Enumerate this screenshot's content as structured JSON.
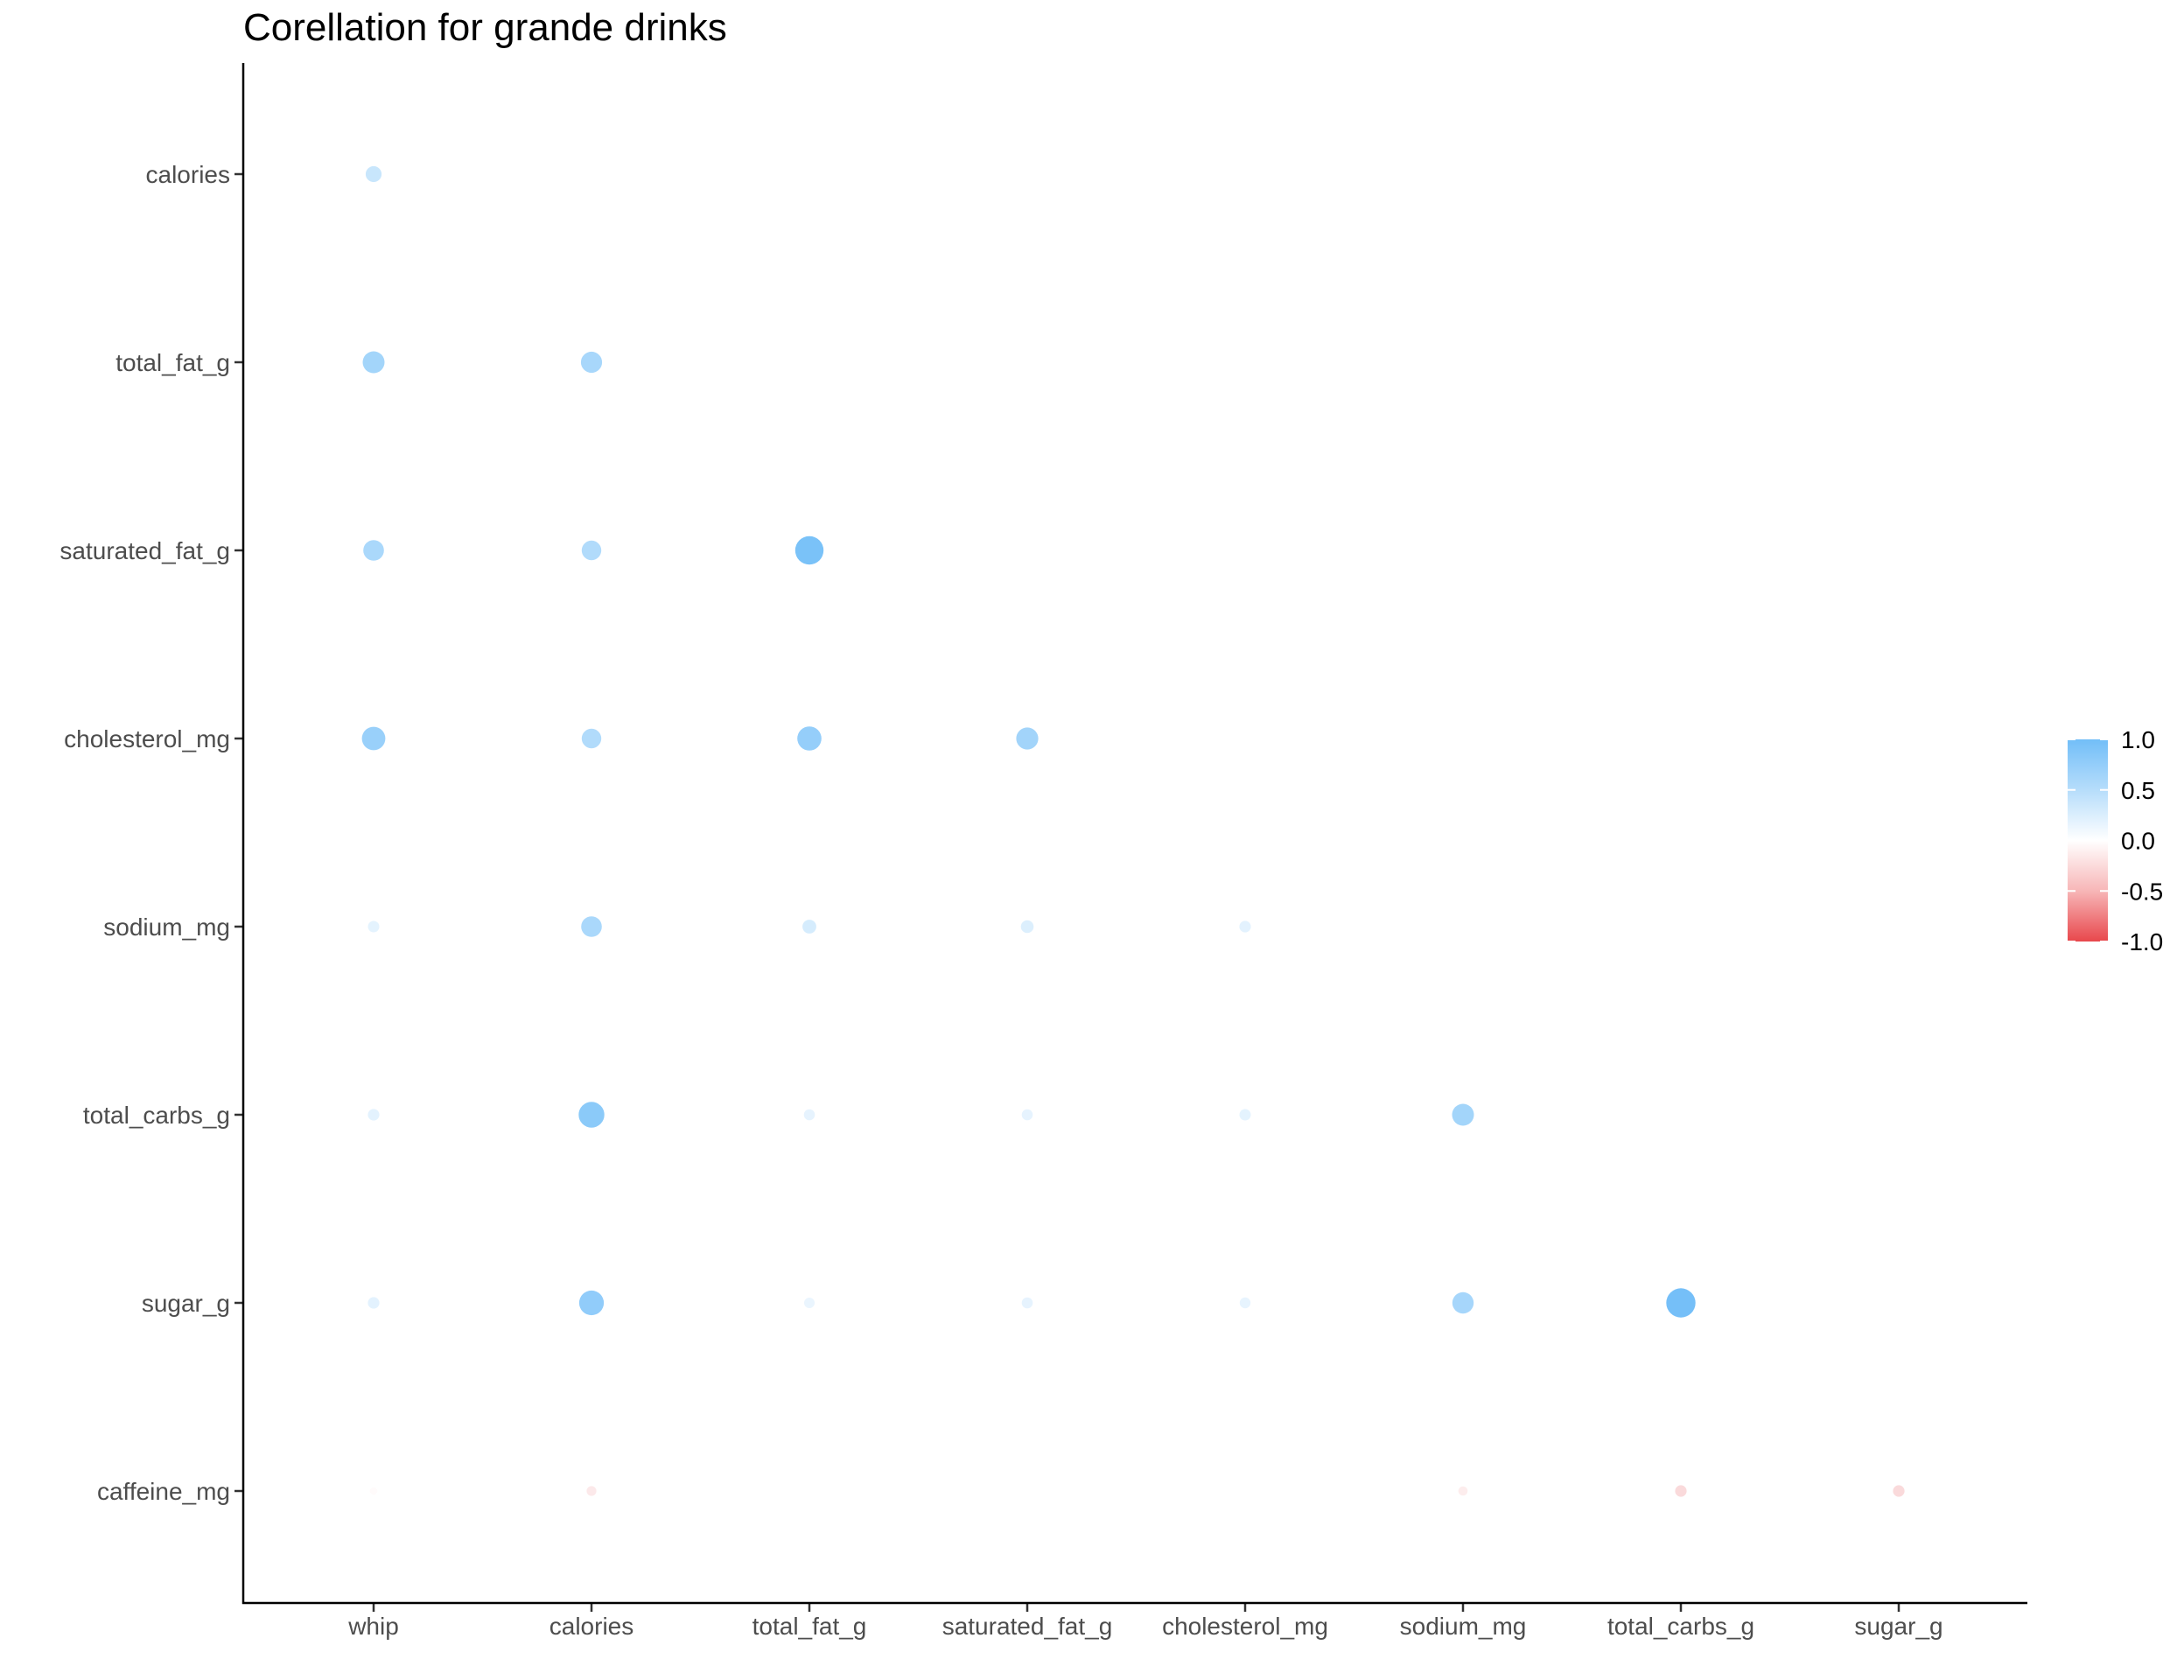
{
  "chart_data": {
    "type": "correlation-dots",
    "title": "Corellation for grande drinks",
    "xlabel": "",
    "ylabel": "",
    "x_categories": [
      "whip",
      "calories",
      "total_fat_g",
      "saturated_fat_g",
      "cholesterol_mg",
      "sodium_mg",
      "total_carbs_g",
      "sugar_g"
    ],
    "y_categories": [
      "calories",
      "total_fat_g",
      "saturated_fat_g",
      "cholesterol_mg",
      "sodium_mg",
      "total_carbs_g",
      "sugar_g",
      "caffeine_mg"
    ],
    "grid": false,
    "legend": {
      "position": "right",
      "range": [
        -1,
        1
      ],
      "ticks": [
        "1.0",
        "0.5",
        "0.0",
        "-0.5",
        "-1.0"
      ],
      "high_color": "#72bef8",
      "mid_color": "#ffffff",
      "low_color": "#e8474c"
    },
    "points": [
      {
        "x": "whip",
        "y": "calories",
        "value": 0.39
      },
      {
        "x": "whip",
        "y": "total_fat_g",
        "value": 0.65
      },
      {
        "x": "calories",
        "y": "total_fat_g",
        "value": 0.62
      },
      {
        "x": "whip",
        "y": "saturated_fat_g",
        "value": 0.6
      },
      {
        "x": "calories",
        "y": "saturated_fat_g",
        "value": 0.55
      },
      {
        "x": "total_fat_g",
        "y": "saturated_fat_g",
        "value": 0.94
      },
      {
        "x": "whip",
        "y": "cholesterol_mg",
        "value": 0.72
      },
      {
        "x": "calories",
        "y": "cholesterol_mg",
        "value": 0.55
      },
      {
        "x": "total_fat_g",
        "y": "cholesterol_mg",
        "value": 0.75
      },
      {
        "x": "saturated_fat_g",
        "y": "cholesterol_mg",
        "value": 0.66
      },
      {
        "x": "whip",
        "y": "sodium_mg",
        "value": 0.19
      },
      {
        "x": "calories",
        "y": "sodium_mg",
        "value": 0.6
      },
      {
        "x": "total_fat_g",
        "y": "sodium_mg",
        "value": 0.3
      },
      {
        "x": "saturated_fat_g",
        "y": "sodium_mg",
        "value": 0.25
      },
      {
        "x": "cholesterol_mg",
        "y": "sodium_mg",
        "value": 0.2
      },
      {
        "x": "whip",
        "y": "total_carbs_g",
        "value": 0.2
      },
      {
        "x": "calories",
        "y": "total_carbs_g",
        "value": 0.82
      },
      {
        "x": "total_fat_g",
        "y": "total_carbs_g",
        "value": 0.18
      },
      {
        "x": "saturated_fat_g",
        "y": "total_carbs_g",
        "value": 0.18
      },
      {
        "x": "cholesterol_mg",
        "y": "total_carbs_g",
        "value": 0.19
      },
      {
        "x": "sodium_mg",
        "y": "total_carbs_g",
        "value": 0.65
      },
      {
        "x": "whip",
        "y": "sugar_g",
        "value": 0.2
      },
      {
        "x": "calories",
        "y": "sugar_g",
        "value": 0.78
      },
      {
        "x": "total_fat_g",
        "y": "sugar_g",
        "value": 0.15
      },
      {
        "x": "saturated_fat_g",
        "y": "sugar_g",
        "value": 0.18
      },
      {
        "x": "cholesterol_mg",
        "y": "sugar_g",
        "value": 0.17
      },
      {
        "x": "sodium_mg",
        "y": "sugar_g",
        "value": 0.63
      },
      {
        "x": "total_carbs_g",
        "y": "sugar_g",
        "value": 0.98
      },
      {
        "x": "whip",
        "y": "caffeine_mg",
        "value": -0.02
      },
      {
        "x": "calories",
        "y": "caffeine_mg",
        "value": -0.12
      },
      {
        "x": "total_fat_g",
        "y": "caffeine_mg",
        "value": 0.0
      },
      {
        "x": "saturated_fat_g",
        "y": "caffeine_mg",
        "value": 0.0
      },
      {
        "x": "cholesterol_mg",
        "y": "caffeine_mg",
        "value": 0.0
      },
      {
        "x": "sodium_mg",
        "y": "caffeine_mg",
        "value": -0.1
      },
      {
        "x": "total_carbs_g",
        "y": "caffeine_mg",
        "value": -0.2
      },
      {
        "x": "sugar_g",
        "y": "caffeine_mg",
        "value": -0.2
      }
    ]
  }
}
